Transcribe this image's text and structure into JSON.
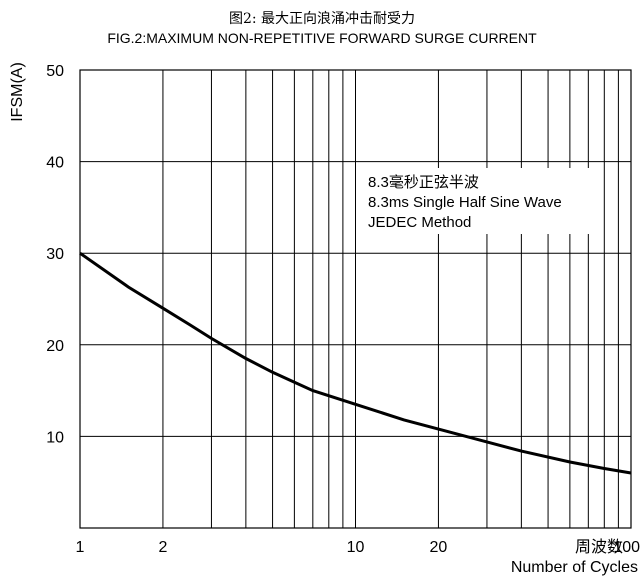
{
  "chart_data": {
    "type": "line",
    "title": "图2: 最大正向浪涌冲击耐受力",
    "subtitle": "FIG.2:MAXIMUM NON-REPETITIVE FORWARD SURGE CURRENT",
    "ylabel": "IFSM(A)",
    "xlabel": "Number of Cycles",
    "xlabel_cn": "周波数",
    "x_scale": "log",
    "xlim": [
      1,
      100
    ],
    "ylim": [
      0,
      50
    ],
    "x_ticks": [
      1,
      2,
      10,
      20,
      100
    ],
    "y_ticks": [
      10,
      20,
      30,
      40,
      50
    ],
    "grid": true,
    "annotations": [
      "8.3毫秒正弦半波",
      "8.3ms Single Half Sine Wave",
      "JEDEC Method"
    ],
    "series": [
      {
        "x": [
          1,
          1.5,
          2,
          2.5,
          3,
          4,
          5,
          7,
          10,
          15,
          20,
          30,
          40,
          60,
          80,
          100
        ],
        "y": [
          30,
          26.3,
          24,
          22.2,
          20.7,
          18.5,
          17,
          15,
          13.5,
          11.8,
          10.8,
          9.4,
          8.4,
          7.2,
          6.5,
          6
        ]
      }
    ]
  }
}
